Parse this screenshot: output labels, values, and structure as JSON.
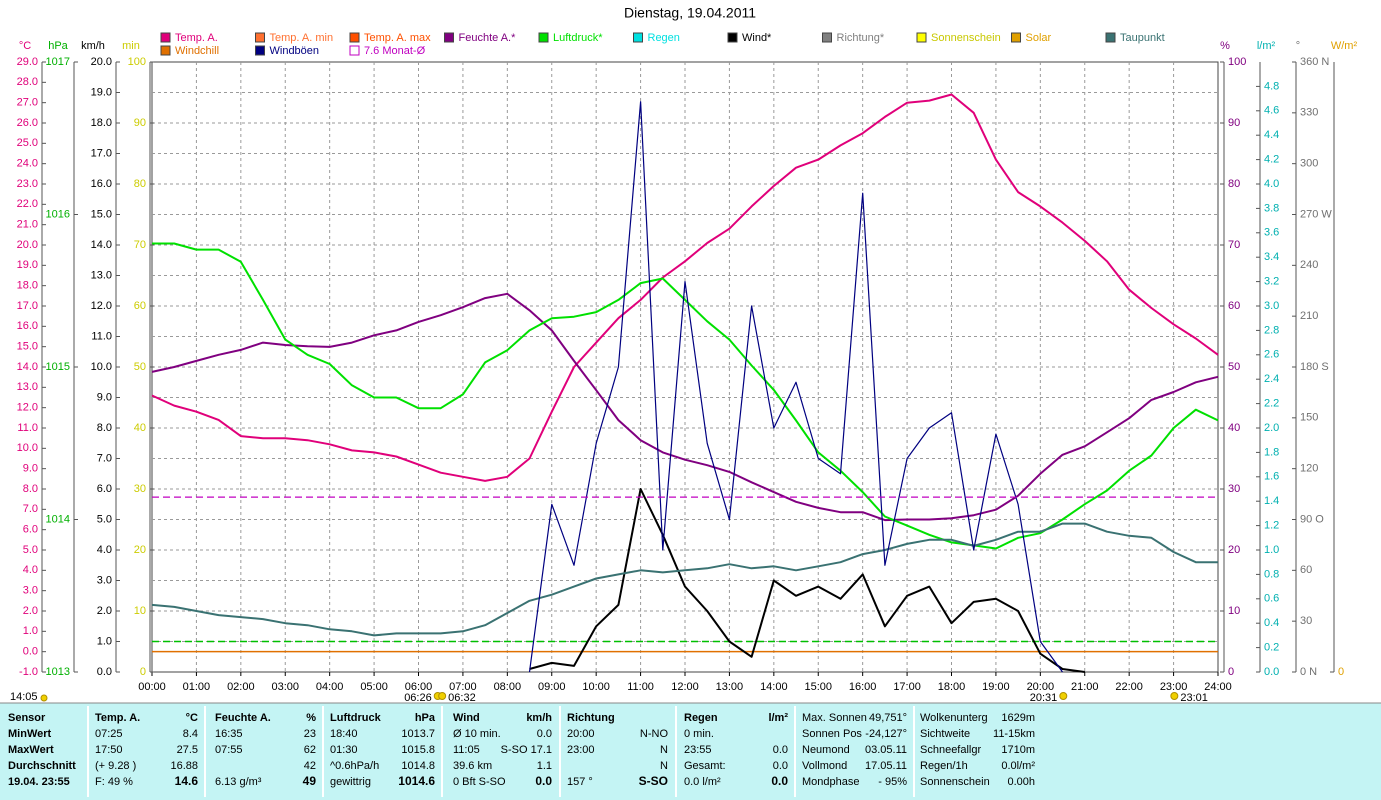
{
  "chart_data": {
    "type": "line",
    "title": "Dienstag, 19.04.2011",
    "xlim": [
      0,
      24
    ],
    "xticks": [
      {
        "value": 0,
        "label": "00:00"
      },
      {
        "value": 1,
        "label": "01:00"
      },
      {
        "value": 2,
        "label": "02:00"
      },
      {
        "value": 3,
        "label": "03:00"
      },
      {
        "value": 4,
        "label": "04:00"
      },
      {
        "value": 5,
        "label": "05:00"
      },
      {
        "value": 6,
        "label": "06:00"
      },
      {
        "value": 7,
        "label": "07:00"
      },
      {
        "value": 8,
        "label": "08:00"
      },
      {
        "value": 9,
        "label": "09:00"
      },
      {
        "value": 10,
        "label": "10:00"
      },
      {
        "value": 11,
        "label": "11:00"
      },
      {
        "value": 12,
        "label": "12:00"
      },
      {
        "value": 13,
        "label": "13:00"
      },
      {
        "value": 14,
        "label": "14:00"
      },
      {
        "value": 15,
        "label": "15:00"
      },
      {
        "value": 16,
        "label": "16:00"
      },
      {
        "value": 17,
        "label": "17:00"
      },
      {
        "value": 18,
        "label": "18:00"
      },
      {
        "value": 19,
        "label": "19:00"
      },
      {
        "value": 20,
        "label": "20:00"
      },
      {
        "value": 21,
        "label": "21:00"
      },
      {
        "value": 22,
        "label": "22:00"
      },
      {
        "value": 23,
        "label": "23:00"
      },
      {
        "value": 24,
        "label": "24:00"
      }
    ],
    "grid": true,
    "x": [
      0,
      0.5,
      1,
      1.5,
      2,
      2.5,
      3,
      3.5,
      4,
      4.5,
      5,
      5.5,
      6,
      6.5,
      7,
      7.5,
      8,
      8.5,
      9,
      9.5,
      10,
      10.5,
      11,
      11.5,
      12,
      12.5,
      13,
      13.5,
      14,
      14.5,
      15,
      15.5,
      16,
      16.5,
      17,
      17.5,
      18,
      18.5,
      19,
      19.5,
      20,
      20.5,
      21,
      21.5,
      22,
      22.5,
      23,
      23.5,
      24
    ],
    "axes": [
      {
        "label": "°C",
        "color": "#e0007a",
        "ylim": [
          -1,
          29
        ],
        "yticks": [
          {
            "value": -1,
            "label": "-1.0"
          },
          {
            "value": 0,
            "label": "0.0"
          },
          {
            "value": 1,
            "label": "1.0"
          },
          {
            "value": 2,
            "label": "2.0"
          },
          {
            "value": 3,
            "label": "3.0"
          },
          {
            "value": 4,
            "label": "4.0"
          },
          {
            "value": 5,
            "label": "5.0"
          },
          {
            "value": 6,
            "label": "6.0"
          },
          {
            "value": 7,
            "label": "7.0"
          },
          {
            "value": 8,
            "label": "8.0"
          },
          {
            "value": 9,
            "label": "9.0"
          },
          {
            "value": 10,
            "label": "10.0"
          },
          {
            "value": 11,
            "label": "11.0"
          },
          {
            "value": 12,
            "label": "12.0"
          },
          {
            "value": 13,
            "label": "13.0"
          },
          {
            "value": 14,
            "label": "14.0"
          },
          {
            "value": 15,
            "label": "15.0"
          },
          {
            "value": 16,
            "label": "16.0"
          },
          {
            "value": 17,
            "label": "17.0"
          },
          {
            "value": 18,
            "label": "18.0"
          },
          {
            "value": 19,
            "label": "19.0"
          },
          {
            "value": 20,
            "label": "20.0"
          },
          {
            "value": 21,
            "label": "21.0"
          },
          {
            "value": 22,
            "label": "22.0"
          },
          {
            "value": 23,
            "label": "23.0"
          },
          {
            "value": 24,
            "label": "24.0"
          },
          {
            "value": 25,
            "label": "25.0"
          },
          {
            "value": 26,
            "label": "26.0"
          },
          {
            "value": 27,
            "label": "27.0"
          },
          {
            "value": 28,
            "label": "28.0"
          },
          {
            "value": 29,
            "label": "29.0"
          }
        ]
      },
      {
        "label": "hPa",
        "color": "#00b000",
        "ylim": [
          1013,
          1017
        ],
        "yticks": [
          1013,
          1014,
          1015,
          1016,
          1017
        ]
      },
      {
        "label": "km/h",
        "color": "#000000",
        "ylim": [
          0,
          20
        ],
        "yticks": [
          {
            "value": 0,
            "label": "0.0"
          },
          {
            "value": 1,
            "label": "1.0"
          },
          {
            "value": 2,
            "label": "2.0"
          },
          {
            "value": 3,
            "label": "3.0"
          },
          {
            "value": 4,
            "label": "4.0"
          },
          {
            "value": 5,
            "label": "5.0"
          },
          {
            "value": 6,
            "label": "6.0"
          },
          {
            "value": 7,
            "label": "7.0"
          },
          {
            "value": 8,
            "label": "8.0"
          },
          {
            "value": 9,
            "label": "9.0"
          },
          {
            "value": 10,
            "label": "10.0"
          },
          {
            "value": 11,
            "label": "11.0"
          },
          {
            "value": 12,
            "label": "12.0"
          },
          {
            "value": 13,
            "label": "13.0"
          },
          {
            "value": 14,
            "label": "14.0"
          },
          {
            "value": 15,
            "label": "15.0"
          },
          {
            "value": 16,
            "label": "16.0"
          },
          {
            "value": 17,
            "label": "17.0"
          },
          {
            "value": 18,
            "label": "18.0"
          },
          {
            "value": 19,
            "label": "19.0"
          },
          {
            "value": 20,
            "label": "20.0"
          }
        ]
      },
      {
        "label": "min",
        "color": "#cccc00",
        "ylim": [
          0,
          100
        ],
        "yticks": [
          0,
          10,
          20,
          30,
          40,
          50,
          60,
          70,
          80,
          90,
          100
        ]
      },
      {
        "label": "%",
        "color": "#800080",
        "ylim": [
          0,
          100
        ],
        "yticks": [
          0,
          10,
          20,
          30,
          40,
          50,
          60,
          70,
          80,
          90,
          100
        ]
      },
      {
        "label": "l/m²",
        "color": "#00b0b0",
        "ylim": [
          0,
          5
        ],
        "yticks": [
          {
            "value": 0,
            "label": "0.0"
          },
          {
            "value": 0.2,
            "label": "0.2"
          },
          {
            "value": 0.4,
            "label": "0.4"
          },
          {
            "value": 0.6,
            "label": "0.6"
          },
          {
            "value": 0.8,
            "label": "0.8"
          },
          {
            "value": 1,
            "label": "1.0"
          },
          {
            "value": 1.2,
            "label": "1.2"
          },
          {
            "value": 1.4,
            "label": "1.4"
          },
          {
            "value": 1.6,
            "label": "1.6"
          },
          {
            "value": 1.8,
            "label": "1.8"
          },
          {
            "value": 2,
            "label": "2.0"
          },
          {
            "value": 2.2,
            "label": "2.2"
          },
          {
            "value": 2.4,
            "label": "2.4"
          },
          {
            "value": 2.6,
            "label": "2.6"
          },
          {
            "value": 2.8,
            "label": "2.8"
          },
          {
            "value": 3,
            "label": "3.0"
          },
          {
            "value": 3.2,
            "label": "3.2"
          },
          {
            "value": 3.4,
            "label": "3.4"
          },
          {
            "value": 3.6,
            "label": "3.6"
          },
          {
            "value": 3.8,
            "label": "3.8"
          },
          {
            "value": 4,
            "label": "4.0"
          },
          {
            "value": 4.2,
            "label": "4.2"
          },
          {
            "value": 4.4,
            "label": "4.4"
          },
          {
            "value": 4.6,
            "label": "4.6"
          },
          {
            "value": 4.8,
            "label": "4.8"
          }
        ]
      },
      {
        "label": "°",
        "color": "#707070",
        "ylim": [
          0,
          360
        ],
        "yticks": [
          {
            "value": 0,
            "label": "0 N"
          },
          30,
          60,
          {
            "value": 90,
            "label": "90 O"
          },
          120,
          150,
          {
            "value": 180,
            "label": "180 S"
          },
          210,
          240,
          {
            "value": 270,
            "label": "270 W"
          },
          300,
          330,
          {
            "value": 360,
            "label": "360 N"
          }
        ]
      },
      {
        "label": "W/m²",
        "color": "#e0a000",
        "yticks": [
          0
        ]
      }
    ],
    "series": [
      {
        "name": "Temp. A.",
        "color": "#e0007a",
        "axis": "°C",
        "values": [
          12.6,
          12.1,
          11.8,
          11.4,
          10.6,
          10.5,
          10.5,
          10.4,
          10.2,
          9.9,
          9.8,
          9.6,
          9.2,
          8.8,
          8.6,
          8.4,
          8.6,
          9.5,
          11.8,
          14.0,
          15.2,
          16.4,
          17.3,
          18.4,
          19.2,
          20.1,
          20.8,
          21.9,
          22.9,
          23.8,
          24.2,
          24.9,
          25.5,
          26.3,
          27.0,
          27.1,
          27.4,
          26.5,
          24.2,
          22.6,
          21.9,
          21.1,
          20.2,
          19.2,
          17.8,
          16.9,
          16.1,
          15.4,
          14.6
        ]
      },
      {
        "name": "Temp. A. min",
        "color": "#ff7030"
      },
      {
        "name": "Temp. A. max",
        "color": "#ff5000"
      },
      {
        "name": "Feuchte A.*",
        "color": "#800080",
        "axis": "%",
        "values": [
          49.2,
          50,
          51,
          52,
          52.8,
          54,
          53.6,
          53.4,
          53.3,
          54,
          55.2,
          56,
          57.4,
          58.5,
          59.8,
          61.3,
          62,
          59.3,
          56,
          51,
          46.2,
          41.3,
          38,
          36,
          34.8,
          33.9,
          32.8,
          31.1,
          29.5,
          27.9,
          26.9,
          26.2,
          26.2,
          24.9,
          25,
          25,
          25.2,
          25.7,
          26.6,
          28.9,
          32.5,
          35.6,
          37,
          39.3,
          41.6,
          44.6,
          45.9,
          47.5,
          48.4
        ]
      },
      {
        "name": "Luftdruck*",
        "color": "#00e000",
        "axis": "hPa",
        "values": [
          1015.81,
          1015.81,
          1015.77,
          1015.77,
          1015.69,
          1015.44,
          1015.18,
          1015.08,
          1015.02,
          1014.88,
          1014.8,
          1014.8,
          1014.73,
          1014.73,
          1014.82,
          1015.03,
          1015.11,
          1015.24,
          1015.32,
          1015.33,
          1015.36,
          1015.44,
          1015.55,
          1015.58,
          1015.44,
          1015.3,
          1015.18,
          1015.01,
          1014.85,
          1014.65,
          1014.44,
          1014.32,
          1014.18,
          1014.02,
          1013.96,
          1013.9,
          1013.85,
          1013.83,
          1013.81,
          1013.88,
          1013.91,
          1014.0,
          1014.1,
          1014.19,
          1014.32,
          1014.42,
          1014.6,
          1014.72,
          1014.65
        ]
      },
      {
        "name": "Regen",
        "color": "#00e0e0"
      },
      {
        "name": "Wind*",
        "color": "#000000",
        "axis": "km/h",
        "values": [
          null,
          null,
          null,
          null,
          null,
          null,
          null,
          null,
          null,
          null,
          null,
          null,
          null,
          null,
          null,
          null,
          null,
          0.1,
          0.3,
          0.2,
          1.5,
          2.2,
          6.0,
          4.5,
          2.8,
          2.0,
          1.0,
          0.5,
          3.0,
          2.5,
          2.8,
          2.4,
          3.2,
          1.5,
          2.5,
          2.8,
          1.6,
          2.3,
          2.4,
          2.0,
          0.6,
          0.1,
          0,
          null,
          null,
          null,
          null,
          null,
          null
        ]
      },
      {
        "name": "Richtung*",
        "color": "#808080"
      },
      {
        "name": "Sonnenschein",
        "color": "#ffff00"
      },
      {
        "name": "Solar",
        "color": "#e0a000"
      },
      {
        "name": "Taupunkt",
        "color": "#3a7272",
        "axis": "°C",
        "values": [
          2.3,
          2.2,
          2.0,
          1.8,
          1.7,
          1.6,
          1.4,
          1.3,
          1.1,
          1.0,
          0.8,
          0.9,
          0.9,
          0.9,
          1.0,
          1.3,
          1.9,
          2.5,
          2.8,
          3.2,
          3.6,
          3.8,
          4.0,
          3.9,
          4.0,
          4.1,
          4.3,
          4.1,
          4.2,
          4.0,
          4.2,
          4.4,
          4.8,
          5.0,
          5.3,
          5.5,
          5.5,
          5.2,
          5.5,
          5.9,
          5.9,
          6.3,
          6.3,
          5.9,
          5.7,
          5.6,
          4.9,
          4.4,
          4.4
        ]
      },
      {
        "name": "Windchill",
        "color": "#e07000"
      },
      {
        "name": "Windböen",
        "color": "#000080",
        "axis": "km/h",
        "values": [
          null,
          null,
          null,
          null,
          null,
          null,
          null,
          null,
          null,
          null,
          null,
          null,
          null,
          null,
          null,
          null,
          null,
          0.0,
          5.5,
          3.5,
          7.5,
          10.0,
          18.7,
          4.0,
          12.8,
          7.5,
          5.0,
          12.0,
          8.0,
          9.5,
          7.0,
          6.5,
          15.7,
          3.5,
          7.0,
          8.0,
          8.5,
          4.0,
          7.8,
          5.5,
          1.0,
          0,
          null,
          null,
          null,
          null,
          null,
          null,
          null
        ]
      },
      {
        "name": "7.6 Monat-Ø",
        "color": "#c000c0",
        "axis": "°C",
        "value": 7.6,
        "marker": "hollow",
        "dashed": true
      }
    ],
    "reference_lines": [
      {
        "axis": "°C",
        "value": 0,
        "color": "#e07000"
      },
      {
        "axis": "km/h",
        "value": 1,
        "color": "#00c000",
        "dashed": true
      }
    ],
    "x_markers": [
      {
        "value": 6.433,
        "label": "06:26"
      },
      {
        "value": 6.533,
        "label": "06:32"
      },
      {
        "value": 20.517,
        "label": "20:31"
      },
      {
        "value": 23.017,
        "label": "23:01"
      }
    ],
    "footnote": "14:05"
  },
  "table": {
    "row_heads": [
      "Sensor",
      "MinWert",
      "MaxWert",
      "Durchschnitt",
      "19.04. 23:55"
    ],
    "columns": [
      [
        [
          "Temp. A.",
          "°C"
        ],
        [
          "07:25",
          "8.4"
        ],
        [
          "17:50",
          "27.5"
        ],
        [
          "(+ 9.28 )",
          "16.88"
        ],
        [
          "F: 49 %",
          "14.6"
        ]
      ],
      [
        [
          "Feuchte A.",
          "%"
        ],
        [
          "16:35",
          "23"
        ],
        [
          "07:55",
          "62"
        ],
        [
          null,
          "42"
        ],
        [
          "6.13 g/m³",
          "49"
        ]
      ],
      [
        [
          "Luftdruck",
          "hPa"
        ],
        [
          "18:40",
          "1013.7"
        ],
        [
          "01:30",
          "1015.8"
        ],
        [
          "^0.6hPa/h",
          "1014.8"
        ],
        [
          "gewittrig",
          "1014.6"
        ]
      ],
      [
        [
          "Wind",
          "km/h"
        ],
        [
          "Ø 10 min.",
          "0.0"
        ],
        [
          "11:05",
          "S-SO 17.1"
        ],
        [
          "39.6 km",
          "1.1"
        ],
        [
          "0 Bft S-SO",
          "0.0"
        ]
      ],
      [
        [
          "Richtung",
          null
        ],
        [
          "20:00",
          "N-NO"
        ],
        [
          "23:00",
          "N"
        ],
        [
          null,
          "N"
        ],
        [
          "157 °",
          "S-SO"
        ]
      ],
      [
        [
          "Regen",
          "l/m²"
        ],
        [
          "0 min.",
          null
        ],
        [
          "23:55",
          "0.0"
        ],
        [
          "Gesamt:",
          "0.0"
        ],
        [
          "0.0 l/m²",
          "0.0"
        ]
      ],
      [
        [
          "Max. Sonnen",
          "49,751°"
        ],
        [
          "Sonnen Pos",
          "-24,127°"
        ],
        [
          "Neumond",
          "03.05.11"
        ],
        [
          "Vollmond",
          "17.05.11"
        ],
        [
          "Mondphase",
          "- 95%"
        ]
      ],
      [
        [
          "Wolkenunterg",
          "1629m"
        ],
        [
          "Sichtweite",
          "11-15km"
        ],
        [
          "Schneefallgr",
          "1710m"
        ],
        [
          "Regen/1h",
          "0.0l/m²"
        ],
        [
          "Sonnenschein",
          "0.00h"
        ]
      ]
    ]
  }
}
